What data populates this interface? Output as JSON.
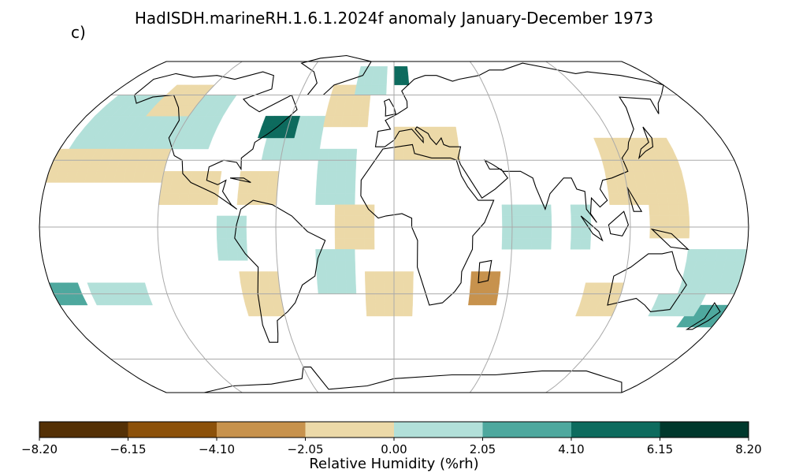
{
  "title": "HadISDH.marineRH.1.6.1.2024f anomaly January-December 1973",
  "panel_label": "c)",
  "colorbar": {
    "label": "Relative Humidity (%rh)",
    "ticks": [
      "−8.20",
      "−6.15",
      "−4.10",
      "−2.05",
      "0.00",
      "2.05",
      "4.10",
      "6.15",
      "8.20"
    ],
    "bins": [
      {
        "from": -8.2,
        "to": -6.15,
        "color": "#543005"
      },
      {
        "from": -6.15,
        "to": -4.1,
        "color": "#8c510a"
      },
      {
        "from": -4.1,
        "to": -2.05,
        "color": "#c7924d"
      },
      {
        "from": -2.05,
        "to": 0.0,
        "color": "#ecd9a8"
      },
      {
        "from": 0.0,
        "to": 2.05,
        "color": "#b2e0d9"
      },
      {
        "from": 2.05,
        "to": 4.1,
        "color": "#4ea89e"
      },
      {
        "from": 4.1,
        "to": 6.15,
        "color": "#0d6b5e"
      },
      {
        "from": 6.15,
        "to": 8.2,
        "color": "#00382c"
      }
    ]
  },
  "map": {
    "projection": "Robinson",
    "gridlines": {
      "longitudes": [
        -180,
        -120,
        -60,
        0,
        60,
        120,
        180
      ],
      "latitudes": [
        -60,
        -30,
        0,
        30,
        60
      ]
    },
    "grid_cell_degrees": 5,
    "anomaly_regions": [
      {
        "lon": [
          -175,
          -100
        ],
        "lat": [
          35,
          60
        ],
        "value": 1.0
      },
      {
        "lon": [
          -145,
          -120
        ],
        "lat": [
          50,
          62
        ],
        "value": -1.0
      },
      {
        "lon": [
          -180,
          -120
        ],
        "lat": [
          20,
          35
        ],
        "value": -1.0
      },
      {
        "lon": [
          -120,
          -90
        ],
        "lat": [
          10,
          25
        ],
        "value": -1.0
      },
      {
        "lon": [
          -160,
          -130
        ],
        "lat": [
          -35,
          -25
        ],
        "value": 1.0
      },
      {
        "lon": [
          -180,
          -165
        ],
        "lat": [
          -35,
          -25
        ],
        "value": 3.0
      },
      {
        "lon": [
          -90,
          -78
        ],
        "lat": [
          -15,
          5
        ],
        "value": 1.0
      },
      {
        "lon": [
          -80,
          -60
        ],
        "lat": [
          -40,
          -20
        ],
        "value": -1.0
      },
      {
        "lon": [
          -80,
          -60
        ],
        "lat": [
          10,
          25
        ],
        "value": -1.0
      },
      {
        "lon": [
          -70,
          -40
        ],
        "lat": [
          30,
          50
        ],
        "value": 1.0
      },
      {
        "lon": [
          -75,
          -55
        ],
        "lat": [
          40,
          48
        ],
        "value": 5.0
      },
      {
        "lon": [
          -40,
          -15
        ],
        "lat": [
          45,
          65
        ],
        "value": -1.0
      },
      {
        "lon": [
          -25,
          -5
        ],
        "lat": [
          60,
          72
        ],
        "value": 1.0
      },
      {
        "lon": [
          0,
          10
        ],
        "lat": [
          65,
          75
        ],
        "value": 5.0
      },
      {
        "lon": [
          -40,
          -20
        ],
        "lat": [
          10,
          35
        ],
        "value": 1.0
      },
      {
        "lon": [
          -30,
          -10
        ],
        "lat": [
          -10,
          10
        ],
        "value": -1.0
      },
      {
        "lon": [
          -40,
          -20
        ],
        "lat": [
          -30,
          -10
        ],
        "value": 1.0
      },
      {
        "lon": [
          -15,
          10
        ],
        "lat": [
          -40,
          -20
        ],
        "value": -1.0
      },
      {
        "lon": [
          0,
          35
        ],
        "lat": [
          30,
          42
        ],
        "value": -1.0
      },
      {
        "lon": [
          55,
          80
        ],
        "lat": [
          -10,
          10
        ],
        "value": 1.0
      },
      {
        "lon": [
          40,
          55
        ],
        "lat": [
          -35,
          -20
        ],
        "value": -2.5
      },
      {
        "lon": [
          90,
          100
        ],
        "lat": [
          -10,
          10
        ],
        "value": 1.0
      },
      {
        "lon": [
          110,
          150
        ],
        "lat": [
          10,
          40
        ],
        "value": -1.0
      },
      {
        "lon": [
          130,
          150
        ],
        "lat": [
          -5,
          10
        ],
        "value": -1.0
      },
      {
        "lon": [
          150,
          180
        ],
        "lat": [
          -30,
          -10
        ],
        "value": 1.5
      },
      {
        "lon": [
          160,
          180
        ],
        "lat": [
          -45,
          -35
        ],
        "value": 3.0
      },
      {
        "lon": [
          140,
          165
        ],
        "lat": [
          -40,
          -30
        ],
        "value": 1.0
      },
      {
        "lon": [
          100,
          120
        ],
        "lat": [
          -40,
          -25
        ],
        "value": -1.0
      }
    ]
  }
}
